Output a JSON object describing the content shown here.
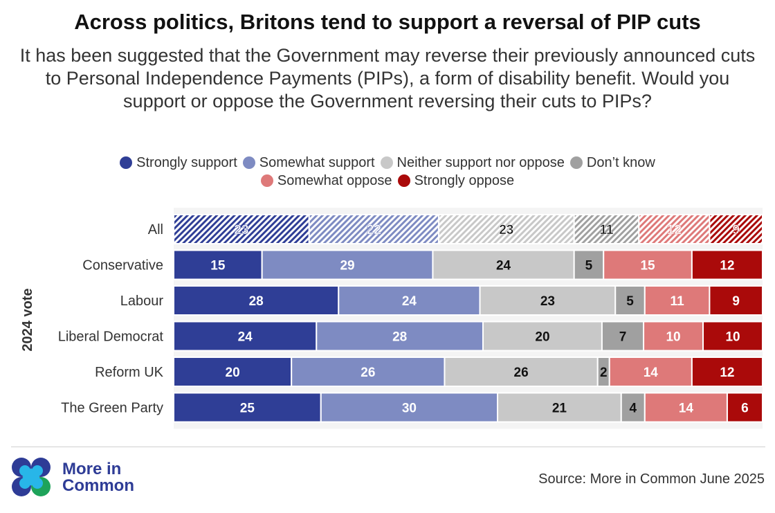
{
  "title": "Across politics, Britons tend to support a reversal of PIP cuts",
  "subtitle": "It has been suggested that the Government may reverse their previously announced cuts to Personal Independence Payments (PIPs), a form of disability benefit. Would you support or oppose the Government reversing their cuts to PIPs?",
  "source": "Source: More in Common June 2025",
  "logo": {
    "line1": "More in",
    "line2": "Common"
  },
  "chart_data": {
    "type": "bar",
    "orientation": "horizontal-stacked",
    "ylabel": "2024 vote",
    "categories": [
      "All",
      "Conservative",
      "Labour",
      "Liberal Democrat",
      "Reform UK",
      "The Green Party"
    ],
    "hatched_categories": [
      "All"
    ],
    "series": [
      {
        "name": "Strongly support",
        "color": "#2f3e96",
        "label_color": "#ffffff",
        "values": [
          23,
          15,
          28,
          24,
          20,
          25
        ]
      },
      {
        "name": "Somewhat support",
        "color": "#7e8bc2",
        "label_color": "#ffffff",
        "values": [
          22,
          29,
          24,
          28,
          26,
          30
        ]
      },
      {
        "name": "Neither support nor oppose",
        "color": "#c8c8c8",
        "label_color": "#111111",
        "values": [
          23,
          24,
          23,
          20,
          26,
          21
        ]
      },
      {
        "name": "Don’t know",
        "color": "#a0a0a0",
        "label_color": "#111111",
        "values": [
          11,
          5,
          5,
          7,
          2,
          4
        ]
      },
      {
        "name": "Somewhat oppose",
        "color": "#de7979",
        "label_color": "#ffffff",
        "values": [
          12,
          15,
          11,
          10,
          14,
          14
        ]
      },
      {
        "name": "Strongly oppose",
        "color": "#aa0a0a",
        "label_color": "#ffffff",
        "values": [
          9,
          12,
          9,
          10,
          12,
          6
        ]
      }
    ],
    "legend_position": "top-center"
  }
}
